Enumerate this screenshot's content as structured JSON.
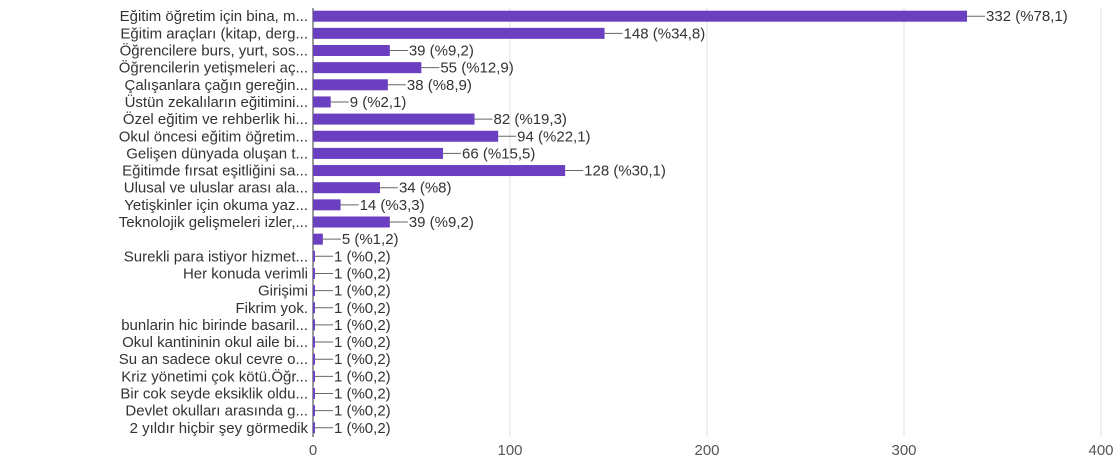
{
  "chart_data": {
    "type": "bar",
    "orientation": "horizontal",
    "bar_color": "#6a3fc0",
    "xlim": [
      0,
      400
    ],
    "xticks": [
      0,
      100,
      200,
      300,
      400
    ],
    "grid": true,
    "categories": [
      "Eğitim öğretim için bina, m...",
      "Eğitim araçları (kitap, derg...",
      "Öğrencilere burs, yurt, sos...",
      "Öğrencilerin yetişmeleri aç...",
      "Çalışanlara çağın gereğin...",
      "Üstün zekalıların eğitimini...",
      "Özel eğitim ve rehberlik hi...",
      "Okul öncesi eğitim öğretim...",
      "Gelişen dünyada oluşan t...",
      "Eğitimde fırsat eşitliğini sa...",
      "Ulusal ve uluslar arası ala...",
      "Yetişkinler için okuma yaz...",
      "Teknolojik gelişmeleri izler,...",
      "",
      "Surekli para istiyor hizmet...",
      "Her konuda verimli",
      "Girişimi",
      "Fikrim yok.",
      "bunlarin hic birinde basaril...",
      "Okul kantininin okul aile bi...",
      "Su an sadece okul cevre o...",
      "Kriz yönetimi çok kötü.Öğr...",
      "Bir cok seyde eksiklik oldu...",
      "Devlet okulları arasında g...",
      "2 yıldır hiçbir şey görmedik"
    ],
    "values": [
      332,
      148,
      39,
      55,
      38,
      9,
      82,
      94,
      66,
      128,
      34,
      14,
      39,
      5,
      1,
      1,
      1,
      1,
      1,
      1,
      1,
      1,
      1,
      1,
      1
    ],
    "data_labels": [
      "332 (%78,1)",
      "148 (%34,8)",
      "39 (%9,2)",
      "55 (%12,9)",
      "38 (%8,9)",
      "9 (%2,1)",
      "82 (%19,3)",
      "94 (%22,1)",
      "66 (%15,5)",
      "128 (%30,1)",
      "34 (%8)",
      "14 (%3,3)",
      "39 (%9,2)",
      "5 (%1,2)",
      "1 (%0,2)",
      "1 (%0,2)",
      "1 (%0,2)",
      "1 (%0,2)",
      "1 (%0,2)",
      "1 (%0,2)",
      "1 (%0,2)",
      "1 (%0,2)",
      "1 (%0,2)",
      "1 (%0,2)",
      "1 (%0,2)"
    ]
  }
}
